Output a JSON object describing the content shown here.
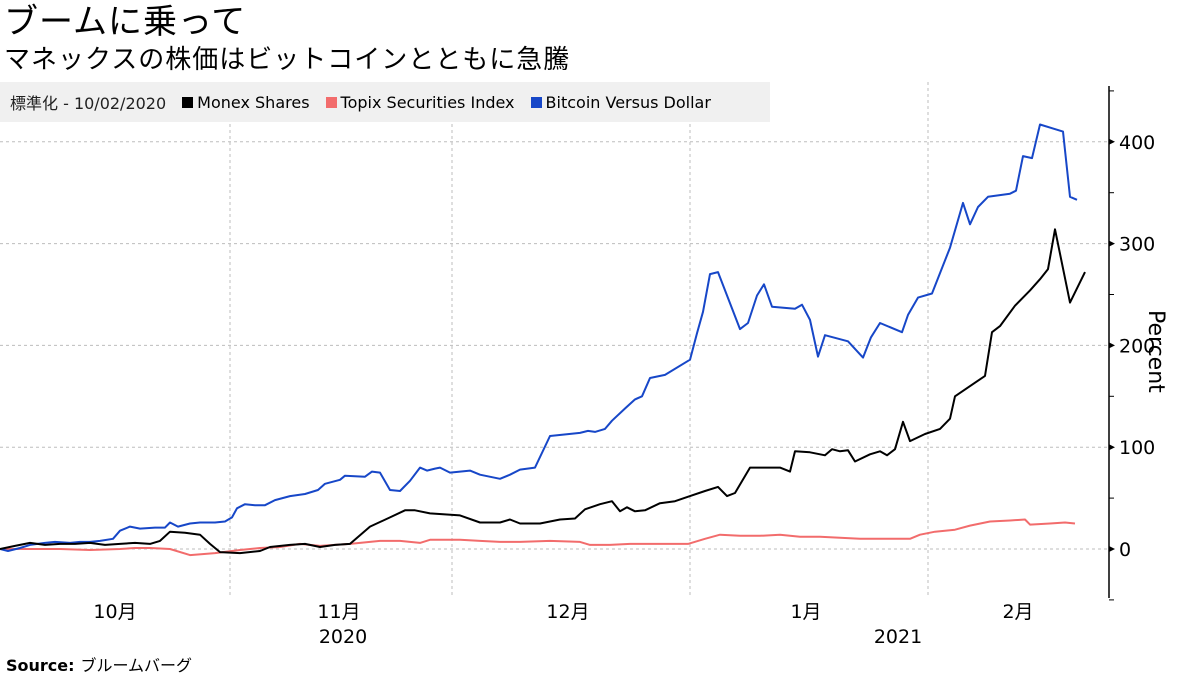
{
  "header": {
    "title": "ブームに乗って",
    "subtitle": "マネックスの株価はビットコインとともに急騰"
  },
  "legend": {
    "normalization": "標準化 - 10/02/2020",
    "items": [
      {
        "label": "Monex Shares",
        "color": "#000000"
      },
      {
        "label": "Topix Securities Index",
        "color": "#f26c6c"
      },
      {
        "label": "Bitcoin Versus Dollar",
        "color": "#1747c8"
      }
    ]
  },
  "axis": {
    "ylabel": "Percent",
    "yticks": [
      "400",
      "300",
      "200",
      "100",
      "0"
    ],
    "xticks": [
      "10月",
      "11月",
      "12月",
      "1月",
      "2月"
    ],
    "years": [
      "2020",
      "2021"
    ]
  },
  "footer": {
    "source_label": "Source:",
    "source_value": "ブルームバーグ"
  },
  "chart_data": {
    "type": "line",
    "title": "ブームに乗って",
    "subtitle": "マネックスの株価はビットコインとともに急騰",
    "xlabel": "",
    "ylabel": "Percent",
    "ylim": [
      -48,
      455
    ],
    "grid": true,
    "legend_position": "top-left",
    "x_ticks": [
      "10月",
      "11月",
      "12月",
      "1月",
      "2月"
    ],
    "x_year_labels": [
      "2020",
      "2021"
    ],
    "y_ticks": [
      0,
      100,
      200,
      300,
      400
    ],
    "x_range": [
      "2020-10-02",
      "2021-02-16"
    ],
    "series": [
      {
        "name": "Monex Shares",
        "color": "#000000",
        "points": [
          [
            0,
            0
          ],
          [
            15,
            3
          ],
          [
            30,
            6
          ],
          [
            45,
            4
          ],
          [
            60,
            5
          ],
          [
            75,
            5
          ],
          [
            90,
            6
          ],
          [
            105,
            4
          ],
          [
            120,
            5
          ],
          [
            135,
            6
          ],
          [
            150,
            5
          ],
          [
            160,
            8
          ],
          [
            170,
            17
          ],
          [
            185,
            16
          ],
          [
            200,
            14
          ],
          [
            210,
            5
          ],
          [
            220,
            -3
          ],
          [
            240,
            -4
          ],
          [
            260,
            -2
          ],
          [
            270,
            2
          ],
          [
            290,
            4
          ],
          [
            305,
            5
          ],
          [
            320,
            2
          ],
          [
            335,
            4
          ],
          [
            350,
            5
          ],
          [
            370,
            22
          ],
          [
            390,
            31
          ],
          [
            405,
            38
          ],
          [
            415,
            38
          ],
          [
            430,
            35
          ],
          [
            445,
            34
          ],
          [
            460,
            33
          ],
          [
            480,
            26
          ],
          [
            500,
            26
          ],
          [
            510,
            29
          ],
          [
            520,
            25
          ],
          [
            540,
            25
          ],
          [
            560,
            29
          ],
          [
            575,
            30
          ],
          [
            585,
            39
          ],
          [
            600,
            44
          ],
          [
            612,
            47
          ],
          [
            620,
            37
          ],
          [
            627,
            41
          ],
          [
            635,
            37
          ],
          [
            645,
            38
          ],
          [
            660,
            45
          ],
          [
            675,
            47
          ],
          [
            690,
            52
          ],
          [
            705,
            57
          ],
          [
            718,
            61
          ],
          [
            727,
            52
          ],
          [
            735,
            55
          ],
          [
            750,
            80
          ],
          [
            765,
            80
          ],
          [
            780,
            80
          ],
          [
            790,
            76
          ],
          [
            795,
            96
          ],
          [
            810,
            95
          ],
          [
            825,
            92
          ],
          [
            832,
            98
          ],
          [
            840,
            96
          ],
          [
            848,
            97
          ],
          [
            855,
            86
          ],
          [
            870,
            93
          ],
          [
            880,
            96
          ],
          [
            887,
            92
          ],
          [
            895,
            98
          ],
          [
            903,
            125
          ],
          [
            910,
            106
          ],
          [
            925,
            113
          ],
          [
            940,
            118
          ],
          [
            950,
            128
          ],
          [
            955,
            150
          ],
          [
            985,
            170
          ],
          [
            992,
            213
          ],
          [
            1000,
            219
          ],
          [
            1015,
            239
          ],
          [
            1030,
            254
          ],
          [
            1040,
            265
          ],
          [
            1048,
            275
          ],
          [
            1055,
            314
          ],
          [
            1070,
            242
          ],
          [
            1085,
            272
          ]
        ]
      },
      {
        "name": "Topix Securities Index",
        "color": "#f26c6c",
        "points": [
          [
            0,
            0
          ],
          [
            30,
            0
          ],
          [
            60,
            0
          ],
          [
            90,
            -1
          ],
          [
            120,
            0
          ],
          [
            135,
            1
          ],
          [
            150,
            1
          ],
          [
            170,
            0
          ],
          [
            190,
            -6
          ],
          [
            215,
            -4
          ],
          [
            240,
            -1
          ],
          [
            260,
            1
          ],
          [
            280,
            2
          ],
          [
            300,
            5
          ],
          [
            320,
            3
          ],
          [
            350,
            5
          ],
          [
            380,
            8
          ],
          [
            400,
            8
          ],
          [
            420,
            6
          ],
          [
            430,
            9
          ],
          [
            460,
            9
          ],
          [
            480,
            8
          ],
          [
            500,
            7
          ],
          [
            520,
            7
          ],
          [
            550,
            8
          ],
          [
            580,
            7
          ],
          [
            590,
            4
          ],
          [
            610,
            4
          ],
          [
            630,
            5
          ],
          [
            660,
            5
          ],
          [
            688,
            5
          ],
          [
            705,
            10
          ],
          [
            720,
            14
          ],
          [
            740,
            13
          ],
          [
            760,
            13
          ],
          [
            780,
            14
          ],
          [
            800,
            12
          ],
          [
            820,
            12
          ],
          [
            840,
            11
          ],
          [
            860,
            10
          ],
          [
            880,
            10
          ],
          [
            910,
            10
          ],
          [
            920,
            14
          ],
          [
            935,
            17
          ],
          [
            955,
            19
          ],
          [
            970,
            23
          ],
          [
            990,
            27
          ],
          [
            1010,
            28
          ],
          [
            1025,
            29
          ],
          [
            1030,
            24
          ],
          [
            1050,
            25
          ],
          [
            1065,
            26
          ],
          [
            1075,
            25
          ]
        ]
      },
      {
        "name": "Bitcoin Versus Dollar",
        "color": "#1747c8",
        "points": [
          [
            0,
            0
          ],
          [
            8,
            -2
          ],
          [
            20,
            1
          ],
          [
            30,
            4
          ],
          [
            45,
            6
          ],
          [
            55,
            7
          ],
          [
            70,
            6
          ],
          [
            80,
            7
          ],
          [
            90,
            7
          ],
          [
            100,
            8
          ],
          [
            113,
            10
          ],
          [
            120,
            18
          ],
          [
            130,
            22
          ],
          [
            140,
            20
          ],
          [
            155,
            21
          ],
          [
            165,
            21
          ],
          [
            170,
            26
          ],
          [
            178,
            22
          ],
          [
            190,
            25
          ],
          [
            200,
            26
          ],
          [
            215,
            26
          ],
          [
            225,
            27
          ],
          [
            232,
            31
          ],
          [
            237,
            40
          ],
          [
            245,
            44
          ],
          [
            255,
            43
          ],
          [
            265,
            43
          ],
          [
            275,
            48
          ],
          [
            290,
            52
          ],
          [
            305,
            54
          ],
          [
            318,
            58
          ],
          [
            325,
            64
          ],
          [
            340,
            68
          ],
          [
            345,
            72
          ],
          [
            365,
            71
          ],
          [
            372,
            76
          ],
          [
            380,
            75
          ],
          [
            390,
            58
          ],
          [
            400,
            57
          ],
          [
            410,
            67
          ],
          [
            420,
            80
          ],
          [
            427,
            77
          ],
          [
            435,
            79
          ],
          [
            440,
            80
          ],
          [
            450,
            75
          ],
          [
            470,
            77
          ],
          [
            480,
            73
          ],
          [
            500,
            69
          ],
          [
            510,
            73
          ],
          [
            520,
            78
          ],
          [
            535,
            80
          ],
          [
            550,
            111
          ],
          [
            580,
            114
          ],
          [
            588,
            116
          ],
          [
            595,
            115
          ],
          [
            605,
            118
          ],
          [
            612,
            126
          ],
          [
            625,
            138
          ],
          [
            635,
            147
          ],
          [
            642,
            150
          ],
          [
            650,
            168
          ],
          [
            665,
            171
          ],
          [
            690,
            186
          ],
          [
            697,
            212
          ],
          [
            703,
            233
          ],
          [
            710,
            270
          ],
          [
            718,
            272
          ],
          [
            740,
            216
          ],
          [
            748,
            222
          ],
          [
            757,
            249
          ],
          [
            764,
            260
          ],
          [
            772,
            238
          ],
          [
            795,
            236
          ],
          [
            802,
            240
          ],
          [
            810,
            225
          ],
          [
            818,
            189
          ],
          [
            825,
            210
          ],
          [
            848,
            204
          ],
          [
            863,
            188
          ],
          [
            871,
            208
          ],
          [
            880,
            222
          ],
          [
            902,
            213
          ],
          [
            908,
            230
          ],
          [
            918,
            247
          ],
          [
            932,
            251
          ],
          [
            950,
            296
          ],
          [
            963,
            340
          ],
          [
            970,
            319
          ],
          [
            978,
            336
          ],
          [
            988,
            346
          ],
          [
            1010,
            349
          ],
          [
            1016,
            352
          ],
          [
            1023,
            386
          ],
          [
            1032,
            384
          ],
          [
            1040,
            417
          ],
          [
            1063,
            410
          ],
          [
            1070,
            346
          ],
          [
            1077,
            343
          ]
        ]
      }
    ]
  }
}
